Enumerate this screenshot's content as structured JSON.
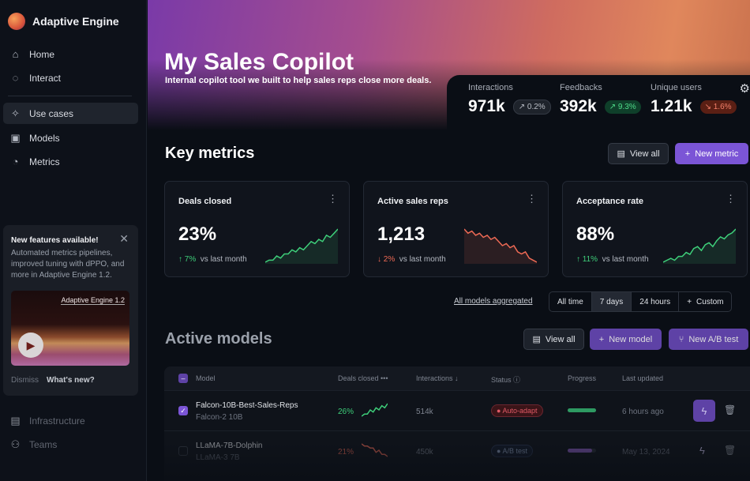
{
  "sidebar": {
    "brand": "Adaptive Engine",
    "items": [
      {
        "label": "Home",
        "icon": "home-icon"
      },
      {
        "label": "Interact",
        "icon": "chat-icon"
      },
      {
        "label": "Use cases",
        "icon": "sparkle-icon"
      },
      {
        "label": "Models",
        "icon": "chip-icon"
      },
      {
        "label": "Metrics",
        "icon": "gauge-icon"
      }
    ],
    "bottom_items": [
      {
        "label": "Infrastructure",
        "icon": "server-icon"
      },
      {
        "label": "Teams",
        "icon": "users-icon"
      }
    ],
    "promo": {
      "title": "New features available!",
      "body": "Automated metrics pipelines, improved tuning with dPPO, and more in Adaptive Engine 1.2.",
      "video_title": "Adaptive Engine 1.2",
      "dismiss": "Dismiss",
      "whats_new": "What's new?"
    }
  },
  "header": {
    "title": "My Sales Copilot",
    "subtitle": "Internal copilot tool we built to help sales reps close more deals."
  },
  "stats": [
    {
      "label": "Interactions",
      "value": "971k",
      "change": "0.2%",
      "trend": "neutral"
    },
    {
      "label": "Feedbacks",
      "value": "392k",
      "change": "9.3%",
      "trend": "up"
    },
    {
      "label": "Unique users",
      "value": "1.21k",
      "change": "1.6%",
      "trend": "down"
    }
  ],
  "key_metrics": {
    "title": "Key metrics",
    "view_all": "View all",
    "new_metric": "New metric",
    "cards": [
      {
        "name": "Deals closed",
        "value": "23%",
        "delta": "7%",
        "dir": "up",
        "suffix": "vs last month",
        "spark": [
          2,
          3,
          3,
          5,
          4,
          6,
          6,
          8,
          7,
          9,
          8,
          10,
          12,
          11,
          13,
          12,
          15,
          14,
          16,
          18
        ]
      },
      {
        "name": "Active sales reps",
        "value": "1,213",
        "delta": "2%",
        "dir": "down",
        "suffix": "vs last month",
        "spark": [
          18,
          16,
          17,
          15,
          16,
          14,
          15,
          13,
          14,
          12,
          10,
          11,
          9,
          10,
          7,
          6,
          7,
          4,
          3,
          2
        ]
      },
      {
        "name": "Acceptance rate",
        "value": "88%",
        "delta": "11%",
        "dir": "up",
        "suffix": "vs last month",
        "spark": [
          2,
          3,
          4,
          3,
          5,
          5,
          7,
          6,
          9,
          10,
          8,
          11,
          12,
          10,
          13,
          15,
          14,
          16,
          17,
          19
        ]
      }
    ]
  },
  "filters": {
    "aggregate_link": "All models aggregated",
    "ranges": [
      "All time",
      "7 days",
      "24 hours",
      "Custom"
    ],
    "selected": "7 days"
  },
  "active_models": {
    "title": "Active models",
    "view_all": "View all",
    "new_model": "New model",
    "new_ab": "New A/B test",
    "columns": [
      "Model",
      "Deals closed",
      "Interactions",
      "Status",
      "Progress",
      "Last updated"
    ],
    "rows": [
      {
        "name": "Falcon-10B-Best-Sales-Reps",
        "base": "Falcon-2 10B",
        "deals": "26%",
        "interactions": "514k",
        "status": "Auto-adapt",
        "progress": 100,
        "updated": "6 hours ago",
        "checked": true,
        "spark": [
          1,
          2,
          2,
          4,
          3,
          5,
          4,
          6,
          5,
          7
        ]
      },
      {
        "name": "LLaMA-7B-Dolphin",
        "base": "LLaMA-3 7B",
        "deals": "21%",
        "interactions": "450k",
        "status": "A/B test",
        "progress": 85,
        "updated": "May 13, 2024",
        "checked": false,
        "spark": [
          7,
          6,
          6,
          5,
          5,
          3,
          4,
          2,
          2,
          1
        ]
      }
    ]
  },
  "colors": {
    "up": "#3ecf7a",
    "down": "#ef6a55",
    "accent": "#7b55d6"
  }
}
